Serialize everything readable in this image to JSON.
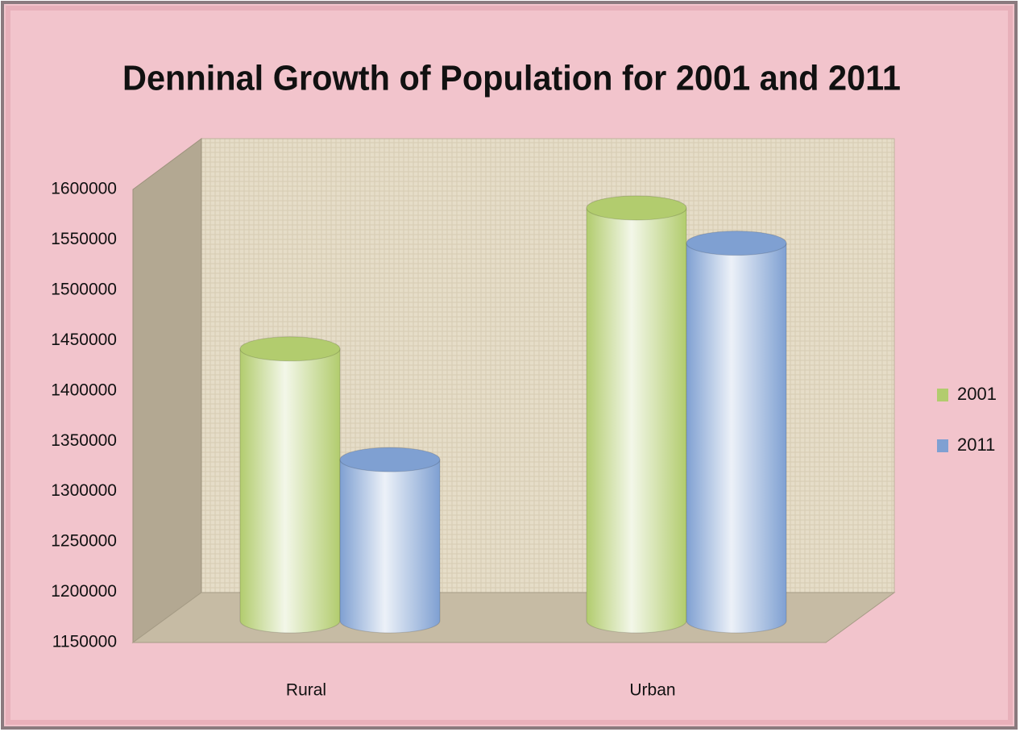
{
  "chart_data": {
    "type": "bar3d",
    "title": "Denninal Growth of Population for 2001 and 2011",
    "categories": [
      "Rural",
      "Urban"
    ],
    "series": [
      {
        "name": "2001",
        "color": "#b2cc6e",
        "values": [
          1420000,
          1560000
        ]
      },
      {
        "name": "2011",
        "color": "#7fa0d2",
        "values": [
          1310000,
          1525000
        ]
      }
    ],
    "ylim": [
      1150000,
      1600000
    ],
    "yticks": [
      1150000,
      1200000,
      1250000,
      1300000,
      1350000,
      1400000,
      1450000,
      1500000,
      1550000,
      1600000
    ],
    "legend": "right"
  }
}
